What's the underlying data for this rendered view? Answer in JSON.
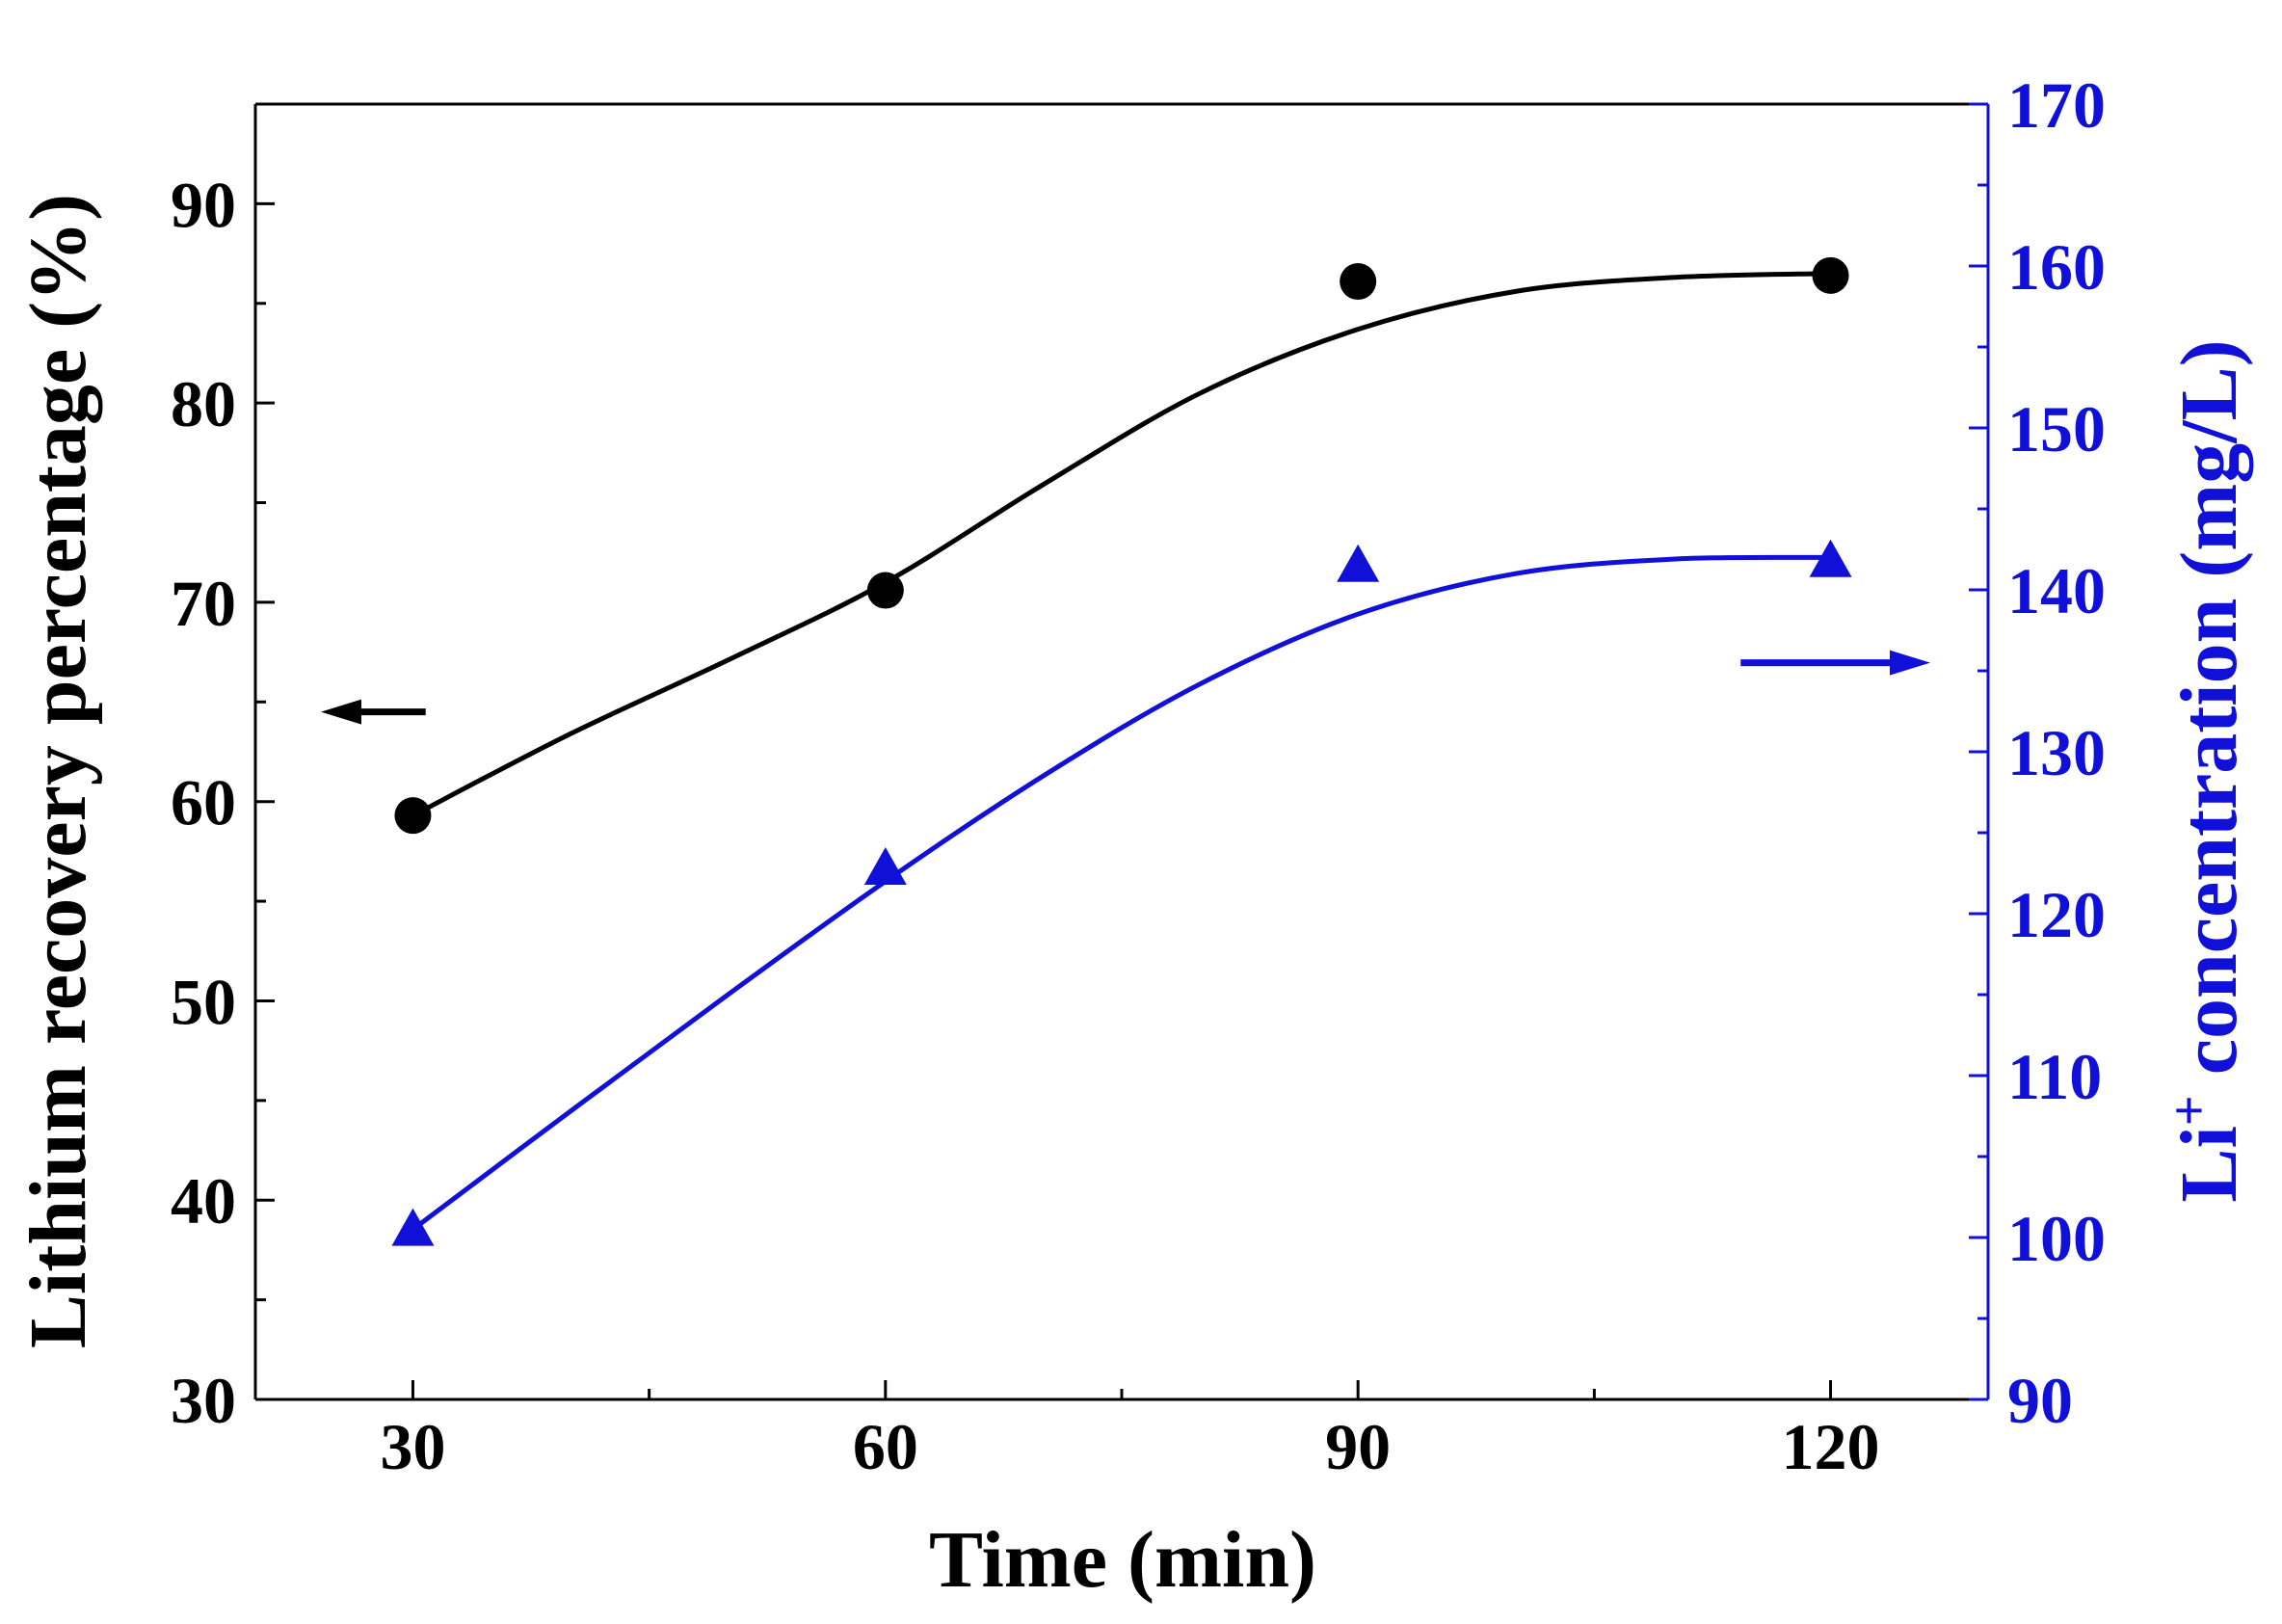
{
  "chart_data": {
    "type": "line",
    "title": "",
    "x": [
      30,
      60,
      90,
      120
    ],
    "xlabel": "Time (min)",
    "xlim": [
      20,
      130
    ],
    "xticks": [
      30,
      60,
      90,
      120
    ],
    "xtick_labels": [
      "30",
      "60",
      "90",
      "120"
    ],
    "ylabel_left": "Lithium recovery percentage (%)",
    "ylim_left": [
      30,
      95
    ],
    "yticks_left": [
      30,
      40,
      50,
      60,
      70,
      80,
      90
    ],
    "ytick_labels_left": [
      "30",
      "40",
      "50",
      "60",
      "70",
      "80",
      "90"
    ],
    "ylabel_right_base": "Li",
    "ylabel_right_sup": "+",
    "ylabel_right_rest": " concentration (mg/L)",
    "ylim_right": [
      90,
      170
    ],
    "yticks_right": [
      90,
      100,
      110,
      120,
      130,
      140,
      150,
      160,
      170
    ],
    "ytick_labels_right": [
      "90",
      "100",
      "110",
      "120",
      "130",
      "140",
      "150",
      "160",
      "170"
    ],
    "series": [
      {
        "name": "Lithium recovery percentage",
        "axis": "left",
        "marker": "circle",
        "values": [
          59.3,
          70.6,
          86.1,
          86.4
        ],
        "fit": [
          [
            30,
            59.3
          ],
          [
            40,
            63.4
          ],
          [
            50,
            67.1
          ],
          [
            60,
            71.0
          ],
          [
            70,
            75.9
          ],
          [
            80,
            80.5
          ],
          [
            90,
            83.7
          ],
          [
            100,
            85.6
          ],
          [
            110,
            86.3
          ],
          [
            120,
            86.5
          ]
        ]
      },
      {
        "name": "Li+ concentration",
        "axis": "right",
        "marker": "triangle",
        "values": [
          100.5,
          122.8,
          141.5,
          141.8
        ],
        "fit": [
          [
            30,
            100.5
          ],
          [
            40,
            107.8
          ],
          [
            50,
            115.0
          ],
          [
            60,
            122.0
          ],
          [
            70,
            128.5
          ],
          [
            80,
            134.2
          ],
          [
            90,
            138.5
          ],
          [
            100,
            141.0
          ],
          [
            110,
            141.9
          ],
          [
            120,
            142.0
          ]
        ]
      }
    ],
    "colors": {
      "left": "#000000",
      "right": "#1010d8"
    },
    "annotations": [
      {
        "type": "arrow",
        "direction": "left",
        "series": "Lithium recovery percentage",
        "anchor_x": 25,
        "anchor_y_left": 64.5
      },
      {
        "type": "arrow",
        "direction": "right",
        "series": "Li+ concentration",
        "anchor_x": 125,
        "anchor_y_right": 135.5
      }
    ]
  }
}
